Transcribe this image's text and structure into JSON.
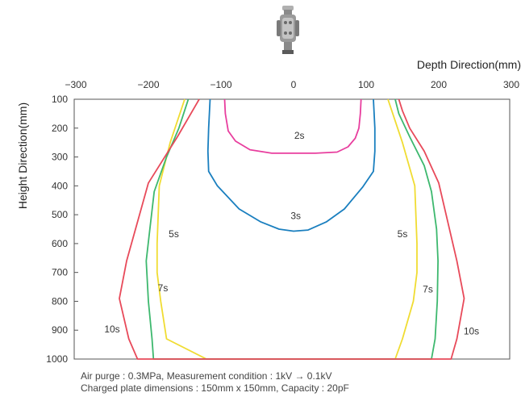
{
  "chart_data": {
    "type": "line",
    "xlabel": "Depth Direction(mm)",
    "ylabel": "Height Direction(mm)",
    "xlim": [
      -300,
      300
    ],
    "ylim": [
      1000,
      100
    ],
    "x_ticks": [
      "−300",
      "−200",
      "−100",
      "0",
      "100",
      "200",
      "300"
    ],
    "y_ticks": [
      "100",
      "200",
      "300",
      "400",
      "500",
      "600",
      "700",
      "800",
      "900",
      "1000"
    ],
    "grid": false,
    "series": [
      {
        "name": "2s",
        "color": "#e83e9e",
        "points": [
          [
            -95,
            100
          ],
          [
            -94,
            150
          ],
          [
            -90,
            210
          ],
          [
            -80,
            245
          ],
          [
            -60,
            275
          ],
          [
            -30,
            287
          ],
          [
            0,
            287
          ],
          [
            30,
            287
          ],
          [
            60,
            283
          ],
          [
            75,
            265
          ],
          [
            85,
            235
          ],
          [
            90,
            200
          ],
          [
            92,
            150
          ],
          [
            93,
            100
          ]
        ]
      },
      {
        "name": "3s",
        "color": "#1a7fbf",
        "points": [
          [
            -115,
            100
          ],
          [
            -117,
            200
          ],
          [
            -118,
            280
          ],
          [
            -117,
            350
          ],
          [
            -105,
            400
          ],
          [
            -75,
            480
          ],
          [
            -45,
            525
          ],
          [
            -20,
            550
          ],
          [
            0,
            557
          ],
          [
            20,
            553
          ],
          [
            45,
            525
          ],
          [
            70,
            480
          ],
          [
            95,
            405
          ],
          [
            110,
            350
          ],
          [
            112,
            280
          ],
          [
            112,
            200
          ],
          [
            110,
            100
          ]
        ]
      },
      {
        "name": "5s",
        "color": "#f0dc32",
        "points": [
          [
            -150,
            100
          ],
          [
            -170,
            250
          ],
          [
            -185,
            400
          ],
          [
            -188,
            600
          ],
          [
            -188,
            700
          ],
          [
            -183,
            800
          ],
          [
            -175,
            930
          ],
          [
            -120,
            1000
          ],
          [
            140,
            1000
          ],
          [
            150,
            930
          ],
          [
            165,
            800
          ],
          [
            170,
            700
          ],
          [
            170,
            600
          ],
          [
            167,
            400
          ],
          [
            150,
            250
          ],
          [
            130,
            100
          ]
        ]
      },
      {
        "name": "7s",
        "color": "#3db86e",
        "points": [
          [
            -145,
            100
          ],
          [
            -158,
            200
          ],
          [
            -175,
            300
          ],
          [
            -192,
            420
          ],
          [
            -198,
            550
          ],
          [
            -203,
            660
          ],
          [
            -200,
            800
          ],
          [
            -195,
            930
          ],
          [
            -193,
            1000
          ],
          [
            190,
            1000
          ],
          [
            195,
            930
          ],
          [
            198,
            800
          ],
          [
            199,
            660
          ],
          [
            197,
            550
          ],
          [
            190,
            420
          ],
          [
            180,
            330
          ],
          [
            160,
            230
          ],
          [
            145,
            150
          ],
          [
            140,
            100
          ]
        ]
      },
      {
        "name": "10s",
        "color": "#e84a5a",
        "points": [
          [
            -130,
            100
          ],
          [
            -160,
            230
          ],
          [
            -200,
            390
          ],
          [
            -230,
            660
          ],
          [
            -240,
            790
          ],
          [
            -227,
            930
          ],
          [
            -215,
            1000
          ],
          [
            217,
            1000
          ],
          [
            225,
            930
          ],
          [
            235,
            790
          ],
          [
            225,
            660
          ],
          [
            200,
            390
          ],
          [
            180,
            280
          ],
          [
            160,
            200
          ],
          [
            150,
            140
          ],
          [
            145,
            100
          ]
        ]
      }
    ],
    "curve_labels": [
      {
        "text": "2s",
        "x": 8,
        "y": 237
      },
      {
        "text": "3s",
        "x": 3,
        "y": 515
      },
      {
        "text": "5s",
        "x": -165,
        "y": 578
      },
      {
        "text": "5s",
        "x": 150,
        "y": 578
      },
      {
        "text": "7s",
        "x": -180,
        "y": 765
      },
      {
        "text": "7s",
        "x": 185,
        "y": 770
      },
      {
        "text": "10s",
        "x": -250,
        "y": 908
      },
      {
        "text": "10s",
        "x": 245,
        "y": 915
      }
    ]
  },
  "notes": {
    "line1": "Air purge : 0.3MPa, Measurement condition : 1kV → 0.1kV",
    "line2": "Charged plate dimensions : 150mm x 150mm, Capacity : 20pF"
  },
  "device_icon": "ionizer-device-icon"
}
